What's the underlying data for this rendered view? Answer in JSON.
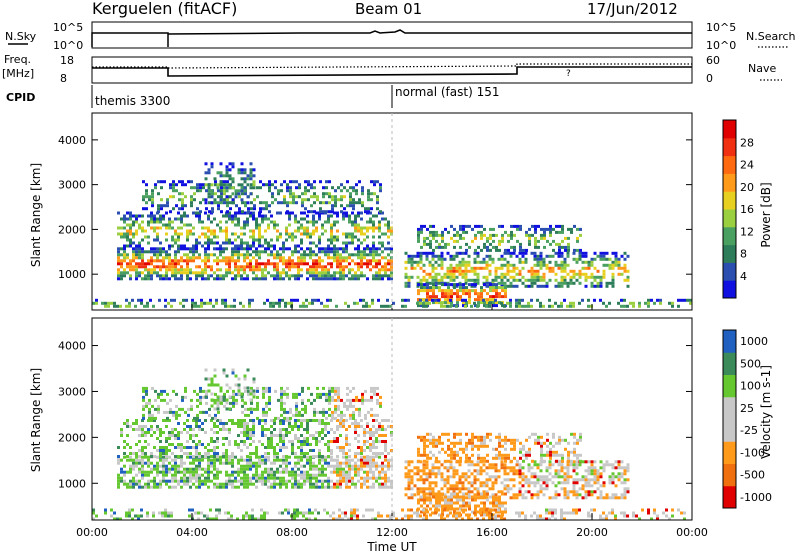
{
  "header": {
    "station": "Kerguelen (fitACF)",
    "beam": "Beam 01",
    "date": "17/Jun/2012"
  },
  "strip1": {
    "left_label": "N.Sky",
    "right_label": "N.Search",
    "left_ticks": [
      "10^5",
      "10^0"
    ],
    "right_ticks": [
      "10^5",
      "10^0"
    ]
  },
  "strip2": {
    "left_label_1": "Freq.",
    "left_label_2": "[MHz]",
    "right_label": "Nave",
    "left_ticks": [
      "18",
      "8"
    ],
    "right_ticks": [
      "60",
      "0"
    ]
  },
  "cpid": {
    "label": "CPID",
    "modes": [
      {
        "name": "themis 3300",
        "start_hour": 0
      },
      {
        "name": "normal (fast) 151",
        "start_hour": 12
      }
    ]
  },
  "colors": {
    "power_scale": [
      "#1010e0",
      "#2a4fb0",
      "#2e7d5a",
      "#4aa060",
      "#9ad040",
      "#e8d020",
      "#ff9a1a",
      "#ff6a10",
      "#f03010",
      "#e00000"
    ],
    "velocity_scale": [
      "#2060c0",
      "#3a8a5a",
      "#66c830",
      "#c8c8c8",
      "#c8c8c8",
      "#ff9a1a",
      "#f07010",
      "#e00000"
    ]
  },
  "chart_data": [
    {
      "type": "heatmap",
      "panel": "power",
      "ylabel": "Slant Range [km]",
      "yticks": [
        "1000",
        "2000",
        "3000",
        "4000"
      ],
      "ylim": [
        200,
        4600
      ],
      "xlim": [
        0,
        24
      ],
      "colorbar_label": "Power [dB]",
      "colorbar_ticks": [
        "4",
        "8",
        "12",
        "16",
        "20",
        "24",
        "28"
      ]
    },
    {
      "type": "heatmap",
      "panel": "velocity",
      "ylabel": "Slant Range [km]",
      "yticks": [
        "1000",
        "2000",
        "3000",
        "4000"
      ],
      "ylim": [
        200,
        4600
      ],
      "xlim": [
        0,
        24
      ],
      "colorbar_label": "Velocity [m s-1]",
      "colorbar_ticks": [
        "1000",
        "500",
        "100",
        "25",
        "-25",
        "-100",
        "-500",
        "-1000"
      ]
    }
  ],
  "xaxis": {
    "ticks": [
      "00:00",
      "04:00",
      "08:00",
      "12:00",
      "16:00",
      "20:00",
      "00:00"
    ],
    "label": "Time UT"
  }
}
